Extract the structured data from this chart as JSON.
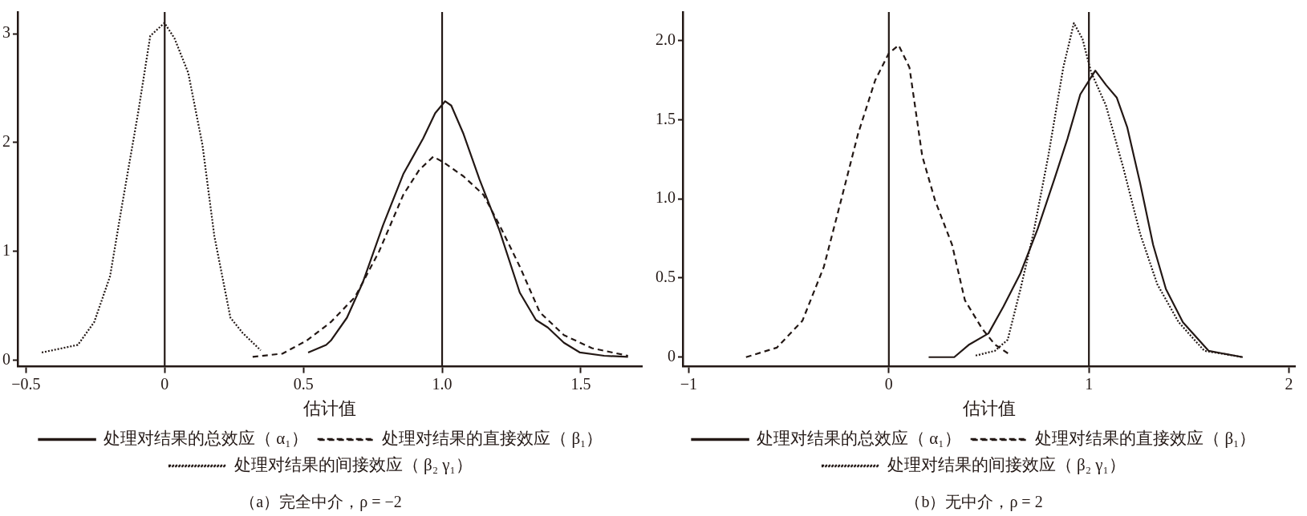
{
  "chart_data": [
    {
      "type": "line",
      "title": "（a）完全中介，ρ = −2",
      "xlabel": "估计值",
      "xlim": [
        -0.53,
        1.72
      ],
      "xticks": [
        {
          "value": -0.5,
          "label": "−0.5"
        },
        0,
        0.5,
        {
          "value": 1,
          "label": "1.0"
        },
        1.5
      ],
      "ylim": [
        -0.06,
        3.2
      ],
      "yticks": [
        0,
        1,
        2,
        3
      ],
      "grid": false,
      "legend": "bottom",
      "marker": "none",
      "ref_lines": [
        {
          "axis": "x",
          "value": 0,
          "color": "#231815"
        },
        {
          "axis": "x",
          "value": 1,
          "color": "#231815"
        }
      ],
      "series": [
        {
          "name": "处理对结果的总效应（ α₁）",
          "color": "#231815",
          "line_style": "solid",
          "x": [
            0.517,
            0.582,
            0.599,
            0.657,
            0.715,
            0.787,
            0.86,
            0.932,
            0.975,
            1.011,
            1.033,
            1.077,
            1.135,
            1.207,
            1.28,
            1.338,
            1.381,
            1.439,
            1.497,
            1.584,
            1.67
          ],
          "values": [
            0.07,
            0.14,
            0.18,
            0.39,
            0.72,
            1.24,
            1.71,
            2.04,
            2.27,
            2.38,
            2.34,
            2.08,
            1.66,
            1.19,
            0.62,
            0.37,
            0.3,
            0.16,
            0.07,
            0.04,
            0.03
          ]
        },
        {
          "name": "处理对结果的直接效应（ β₁）",
          "color": "#231815",
          "line_style": "dashed",
          "x": [
            0.317,
            0.425,
            0.512,
            0.599,
            0.686,
            0.773,
            0.86,
            0.918,
            0.968,
            1.004,
            1.077,
            1.149,
            1.207,
            1.28,
            1.352,
            1.439,
            1.54,
            1.67
          ],
          "values": [
            0.03,
            0.06,
            0.18,
            0.35,
            0.58,
            1.0,
            1.52,
            1.75,
            1.87,
            1.82,
            1.69,
            1.52,
            1.24,
            0.86,
            0.44,
            0.23,
            0.11,
            0.04
          ]
        },
        {
          "name": "处理对结果的间接效应（ β₂ γ₁）",
          "color": "#231815",
          "line_style": "dotted",
          "x": [
            -0.443,
            -0.313,
            -0.254,
            -0.197,
            -0.154,
            -0.096,
            -0.052,
            -0.001,
            0.035,
            0.085,
            0.136,
            0.179,
            0.237,
            0.281,
            0.346
          ],
          "values": [
            0.07,
            0.14,
            0.35,
            0.77,
            1.42,
            2.27,
            2.98,
            3.1,
            2.96,
            2.64,
            1.98,
            1.14,
            0.39,
            0.25,
            0.09
          ]
        }
      ]
    },
    {
      "type": "line",
      "title": "（b）无中介，ρ = 2",
      "xlabel": "估计值",
      "xlim": [
        -1.03,
        2.03
      ],
      "xticks": [
        {
          "value": -1,
          "label": "−1"
        },
        0,
        1,
        2
      ],
      "ylim": [
        -0.06,
        2.18
      ],
      "yticks": [
        0,
        {
          "value": 0.5,
          "label": "0.5"
        },
        {
          "value": 1,
          "label": "1.0"
        },
        {
          "value": 1.5,
          "label": "1.5"
        },
        {
          "value": 2,
          "label": "2.0"
        }
      ],
      "grid": false,
      "legend": "bottom",
      "marker": "none",
      "ref_lines": [
        {
          "axis": "x",
          "value": 0,
          "color": "#231815"
        },
        {
          "axis": "x",
          "value": 1,
          "color": "#231815"
        }
      ],
      "series": [
        {
          "name": "处理对结果的总效应（ α₁）",
          "color": "#231815",
          "line_style": "solid",
          "x": [
            0.199,
            0.327,
            0.402,
            0.498,
            0.573,
            0.658,
            0.744,
            0.829,
            0.893,
            0.957,
            1.032,
            1.085,
            1.139,
            1.192,
            1.256,
            1.321,
            1.385,
            1.47,
            1.598,
            1.769
          ],
          "values": [
            0,
            0,
            0.08,
            0.15,
            0.32,
            0.53,
            0.81,
            1.13,
            1.38,
            1.66,
            1.81,
            1.72,
            1.64,
            1.45,
            1.1,
            0.71,
            0.43,
            0.22,
            0.04,
            0
          ]
        },
        {
          "name": "处理对结果的直接效应（ β₁）",
          "color": "#231815",
          "line_style": "dashed",
          "x": [
            -0.714,
            -0.56,
            -0.432,
            -0.325,
            -0.239,
            -0.154,
            -0.068,
            0,
            0.049,
            0.103,
            0.167,
            0.231,
            0.316,
            0.38,
            0.466,
            0.53,
            0.6
          ],
          "values": [
            0,
            0.06,
            0.23,
            0.57,
            0.99,
            1.41,
            1.75,
            1.92,
            1.97,
            1.83,
            1.27,
            0.99,
            0.71,
            0.36,
            0.18,
            0.08,
            0.02
          ]
        },
        {
          "name": "处理对结果的间接效应（ β₂ γ₁）",
          "color": "#231815",
          "line_style": "dotted",
          "x": [
            0.434,
            0.53,
            0.594,
            0.658,
            0.722,
            0.797,
            0.872,
            0.925,
            0.968,
            1.011,
            1.085,
            1.171,
            1.256,
            1.342,
            1.449,
            1.577,
            1.769
          ],
          "values": [
            0.01,
            0.04,
            0.11,
            0.43,
            0.78,
            1.27,
            1.83,
            2.11,
            2.01,
            1.8,
            1.59,
            1.2,
            0.78,
            0.46,
            0.22,
            0.04,
            0
          ]
        }
      ]
    }
  ]
}
